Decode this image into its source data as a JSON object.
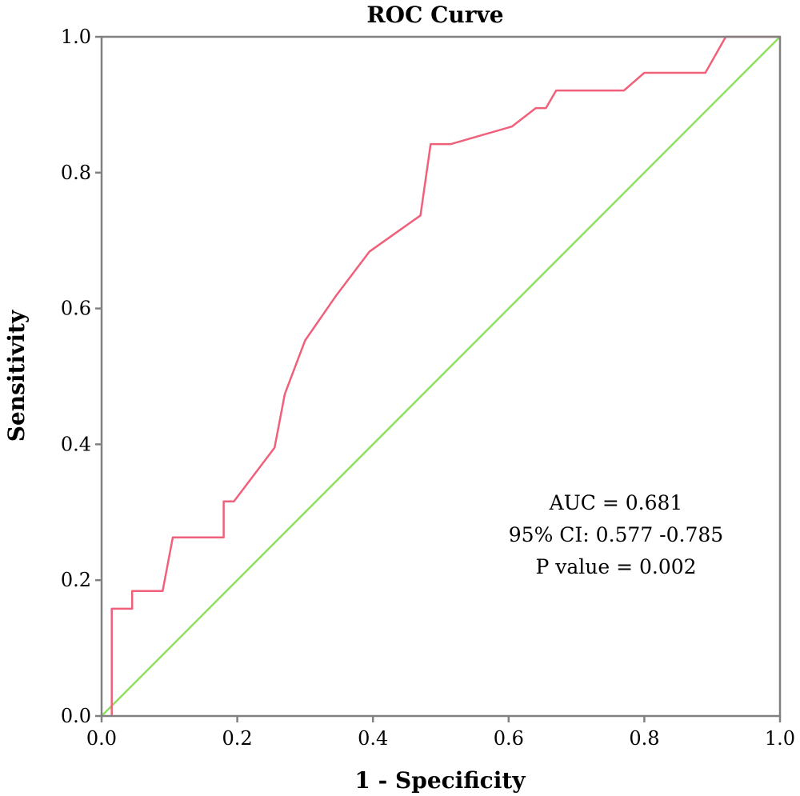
{
  "chart_data": {
    "type": "line",
    "title": "ROC Curve",
    "xlabel": "1 - Specificity",
    "ylabel": "Sensitivity",
    "xlim": [
      0,
      1
    ],
    "ylim": [
      0,
      1
    ],
    "x_ticks": [
      "0.0",
      "0.2",
      "0.4",
      "0.6",
      "0.8",
      "1.0"
    ],
    "y_ticks": [
      "0.0",
      "0.2",
      "0.4",
      "0.6",
      "0.8",
      "1.0"
    ],
    "grid": false,
    "series": [
      {
        "color": "#f0607a",
        "x": [
          0.015,
          0.015,
          0.045,
          0.045,
          0.09,
          0.105,
          0.18,
          0.18,
          0.195,
          0.255,
          0.27,
          0.3,
          0.345,
          0.395,
          0.47,
          0.485,
          0.515,
          0.605,
          0.64,
          0.655,
          0.67,
          0.77,
          0.8,
          0.89,
          0.92,
          1.0
        ],
        "y": [
          0.0,
          0.158,
          0.158,
          0.184,
          0.184,
          0.263,
          0.263,
          0.316,
          0.316,
          0.395,
          0.474,
          0.553,
          0.618,
          0.684,
          0.737,
          0.842,
          0.842,
          0.868,
          0.895,
          0.895,
          0.921,
          0.921,
          0.947,
          0.947,
          1.0,
          1.0
        ]
      },
      {
        "color": "#90e060",
        "x": [
          0,
          1
        ],
        "y": [
          0,
          1
        ]
      }
    ],
    "annotations": [
      "AUC = 0.681",
      "95% CI: 0.577 -0.785",
      "P value = 0.002"
    ]
  }
}
